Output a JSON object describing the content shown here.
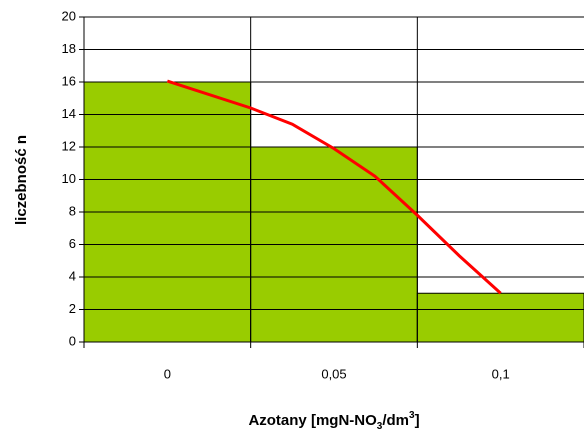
{
  "chart_data": {
    "type": "histogram",
    "y_label": "liczebność n",
    "x_label_parts": [
      "Azotany [mgN-NO",
      "3",
      "/dm",
      "3",
      "]"
    ],
    "bins": [
      -0.025,
      0.025,
      0.075,
      0.125
    ],
    "values": [
      16,
      12,
      3
    ],
    "color": "#99cc00",
    "line": {
      "color": "#ff0000",
      "x": [
        0,
        0.025,
        0.0375,
        0.05,
        0.0623,
        0.075,
        0.0876,
        0.1
      ],
      "values": [
        16.06,
        14.4,
        13.4,
        11.9,
        10.2,
        7.8,
        5.3,
        3.0
      ]
    },
    "xlim": [
      -0.025,
      0.125
    ],
    "xticks": [
      0,
      {
        "value": 0.05,
        "label": "0,05"
      },
      {
        "value": 0.1,
        "label": "0,1"
      }
    ],
    "ylim": [
      0,
      20
    ],
    "yticks": [
      0,
      2,
      4,
      6,
      8,
      10,
      12,
      14,
      16,
      18,
      20
    ],
    "grid": true
  }
}
